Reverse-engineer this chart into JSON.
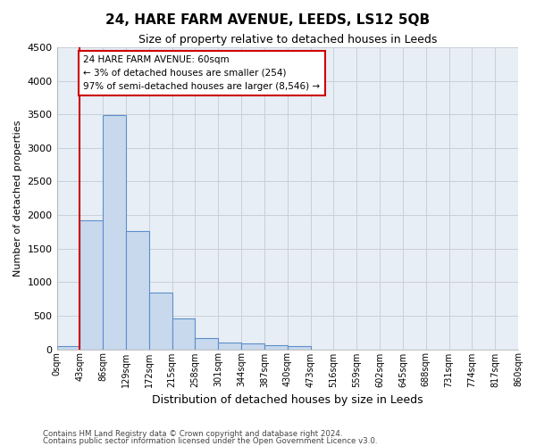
{
  "title": "24, HARE FARM AVENUE, LEEDS, LS12 5QB",
  "subtitle": "Size of property relative to detached houses in Leeds",
  "xlabel": "Distribution of detached houses by size in Leeds",
  "ylabel": "Number of detached properties",
  "bar_color": "#c9d9ed",
  "bar_edge_color": "#5b8fc9",
  "grid_color": "#c8d0dc",
  "background_color": "#e8eef5",
  "annotation_box_color": "#cc0000",
  "vline_color": "#cc0000",
  "vline_x": 1,
  "annotation_text": "24 HARE FARM AVENUE: 60sqm\n← 3% of detached houses are smaller (254)\n97% of semi-detached houses are larger (8,546) →",
  "bin_labels": [
    "0sqm",
    "43sqm",
    "86sqm",
    "129sqm",
    "172sqm",
    "215sqm",
    "258sqm",
    "301sqm",
    "344sqm",
    "387sqm",
    "430sqm",
    "473sqm",
    "516sqm",
    "559sqm",
    "602sqm",
    "645sqm",
    "688sqm",
    "731sqm",
    "774sqm",
    "817sqm",
    "860sqm"
  ],
  "bar_heights": [
    50,
    1920,
    3490,
    1760,
    840,
    455,
    165,
    105,
    80,
    60,
    50,
    0,
    0,
    0,
    0,
    0,
    0,
    0,
    0,
    0
  ],
  "ylim": [
    0,
    4500
  ],
  "yticks": [
    0,
    500,
    1000,
    1500,
    2000,
    2500,
    3000,
    3500,
    4000,
    4500
  ],
  "footer_line1": "Contains HM Land Registry data © Crown copyright and database right 2024.",
  "footer_line2": "Contains public sector information licensed under the Open Government Licence v3.0."
}
